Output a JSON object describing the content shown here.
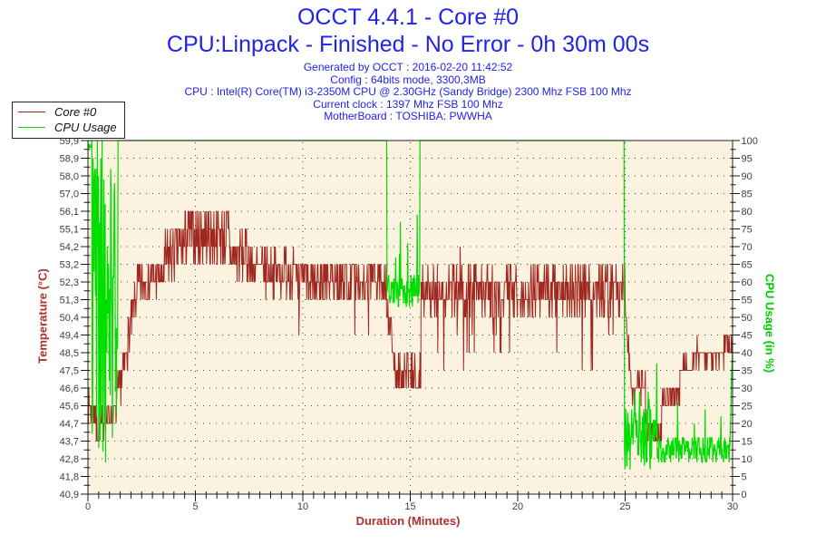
{
  "header": {
    "title1": "OCCT 4.4.1 - Core #0",
    "title2": "CPU:Linpack - Finished - No Error - 0h 30m 00s",
    "info_lines": [
      "Generated by OCCT : 2016-02-20 11:42:52",
      "Config : 64bits mode, 3300,3MB",
      "CPU : Intel(R) Core(TM) i3-2350M CPU @ 2.30GHz (Sandy Bridge) 2300 Mhz FSB 100 Mhz",
      "Current clock : 1397 Mhz FSB 100 Mhz",
      "MotherBoard : TOSHIBA: PWWHA"
    ]
  },
  "legend": {
    "items": [
      {
        "label": "Core #0",
        "color": "#a02820"
      },
      {
        "label": "CPU Usage",
        "color": "#00dd00"
      }
    ]
  },
  "plot_style": {
    "bg": "#fbf2df",
    "border": "#222222",
    "tick_color": "#1a1a1a",
    "tick_label_color": "#3d3d3d",
    "grid_color": "#444444",
    "title_blue": "#2222ee"
  },
  "chart_data": {
    "type": "line",
    "title": "OCCT 4.4.1 - Core #0",
    "subtitle": "CPU:Linpack - Finished - No Error - 0h 30m 00s",
    "xlabel": "Duration (Minutes)",
    "x_range": [
      0,
      30
    ],
    "x_major_ticks": [
      0,
      5,
      10,
      15,
      20,
      25,
      30
    ],
    "x_tick_labels": [
      "0",
      "5",
      "10",
      "15",
      "20",
      "25",
      "30"
    ],
    "x_minor_step": 0.5,
    "grid_v_minutes": [
      5,
      10,
      15,
      20,
      25
    ],
    "left_axis": {
      "label": "Temperature (°C)",
      "color": "#b03030",
      "range": [
        40.9,
        59.9
      ],
      "tick_labels": [
        "59,9",
        "58,9",
        "58,0",
        "57,0",
        "56,1",
        "55,1",
        "54,2",
        "53,2",
        "52,3",
        "51,3",
        "50,4",
        "49,4",
        "48,5",
        "47,5",
        "46,6",
        "45,6",
        "44,7",
        "43,7",
        "42,8",
        "41,8",
        "40,9"
      ]
    },
    "right_axis": {
      "label": "CPU Usage (in %)",
      "color": "#00cc00",
      "range": [
        0,
        100
      ],
      "tick_labels": [
        "100",
        "95",
        "90",
        "85",
        "80",
        "75",
        "70",
        "65",
        "60",
        "55",
        "50",
        "45",
        "40",
        "35",
        "30",
        "25",
        "20",
        "15",
        "10",
        "5",
        "0"
      ]
    },
    "seed": 7,
    "dt": 0.02,
    "series": [
      {
        "name": "Core #0",
        "axis": "left",
        "color": "#a02820",
        "width": 1,
        "quant_base": 40.9,
        "quant_step": 0.95,
        "clamp": [
          40.9,
          59.9
        ],
        "segments": [
          {
            "t0": 0.0,
            "t1": 0.35,
            "v": 45.4,
            "amp": 0.8
          },
          {
            "t0": 0.35,
            "t1": 0.75,
            "v": 44.6,
            "amp": 0.9
          },
          {
            "t0": 0.75,
            "t1": 1.35,
            "v": 45.2,
            "amp": 1.0
          },
          {
            "t0": 1.35,
            "t1": 2.3,
            "v": 45.8,
            "v1": 51.8,
            "amp": 1.2
          },
          {
            "t0": 2.3,
            "t1": 3.5,
            "v": 52.4,
            "amp": 1.1
          },
          {
            "t0": 3.5,
            "t1": 4.6,
            "v": 53.2,
            "v1": 54.6,
            "amp": 1.5
          },
          {
            "t0": 4.6,
            "t1": 6.6,
            "v": 54.8,
            "amp": 1.6
          },
          {
            "t0": 6.6,
            "t1": 7.6,
            "v": 53.7,
            "amp": 1.4
          },
          {
            "t0": 7.6,
            "t1": 9.6,
            "v": 52.9,
            "amp": 1.3
          },
          {
            "t0": 9.6,
            "t1": 13.9,
            "v": 52.4,
            "amp": 1.3,
            "spikes": [
              {
                "p": 0.05,
                "lo": 1.0,
                "hi": 3.3,
                "sign": -1
              }
            ]
          },
          {
            "t0": 13.9,
            "t1": 14.35,
            "v": 50.8,
            "v1": 47.4,
            "amp": 0.9
          },
          {
            "t0": 14.35,
            "t1": 15.5,
            "v": 47.2,
            "amp": 1.1,
            "spikes": [
              {
                "p": 0.05,
                "lo": 0.4,
                "hi": 1.2,
                "sign": -1
              }
            ]
          },
          {
            "t0": 15.5,
            "t1": 25.0,
            "v": 51.9,
            "amp": 1.3,
            "spikes": [
              {
                "p": 0.05,
                "lo": 1.0,
                "hi": 3.6,
                "sign": -1
              },
              {
                "p": 0.008,
                "lo": 0.5,
                "hi": 1.6,
                "sign": 1
              }
            ]
          },
          {
            "t0": 25.0,
            "t1": 25.3,
            "v": 50.5,
            "v1": 47.0,
            "amp": 0.9
          },
          {
            "t0": 25.3,
            "t1": 25.95,
            "v": 46.7,
            "amp": 0.8
          },
          {
            "t0": 25.95,
            "t1": 26.7,
            "v": 44.3,
            "amp": 0.7
          },
          {
            "t0": 26.7,
            "t1": 27.55,
            "v": 46.1,
            "amp": 0.4
          },
          {
            "t0": 27.55,
            "t1": 28.15,
            "v": 47.6,
            "amp": 0.5
          },
          {
            "t0": 28.15,
            "t1": 29.6,
            "v": 48.4,
            "amp": 0.6
          },
          {
            "t0": 29.6,
            "t1": 30.01,
            "v": 48.9,
            "amp": 0.7,
            "spikes": [
              {
                "p": 0.12,
                "lo": 0.5,
                "hi": 1.4,
                "sign": 1
              }
            ]
          }
        ]
      },
      {
        "name": "CPU Usage",
        "axis": "right",
        "color": "#00dd00",
        "width": 1.2,
        "quant_base": 0,
        "quant_step": 1,
        "clamp": [
          0,
          100
        ],
        "segments": [
          {
            "t0": 0.0,
            "t1": 0.2,
            "v": 99,
            "amp": 1.5
          },
          {
            "t0": 0.2,
            "t1": 1.4,
            "v": 55,
            "amp": 46
          },
          {
            "t0": 1.4,
            "t1": 13.92,
            "v": 100,
            "amp": 0
          },
          {
            "t0": 13.92,
            "t1": 15.45,
            "v": 57.5,
            "amp": 4.5,
            "spikes": [
              {
                "p": 0.05,
                "lo": 6,
                "hi": 28,
                "sign": 1
              }
            ]
          },
          {
            "t0": 15.45,
            "t1": 24.97,
            "v": 100,
            "amp": 0
          },
          {
            "t0": 24.97,
            "t1": 26.5,
            "v": 16,
            "amp": 9,
            "spikes": [
              {
                "p": 0.06,
                "lo": 4,
                "hi": 18,
                "sign": 1
              }
            ]
          },
          {
            "t0": 26.5,
            "t1": 29.87,
            "v": 12.5,
            "amp": 4,
            "spikes": [
              {
                "p": 0.02,
                "lo": 4,
                "hi": 14,
                "sign": 1
              }
            ]
          },
          {
            "t0": 29.87,
            "t1": 30.01,
            "v": 14,
            "v1": 46,
            "amp": 2
          }
        ]
      }
    ]
  }
}
